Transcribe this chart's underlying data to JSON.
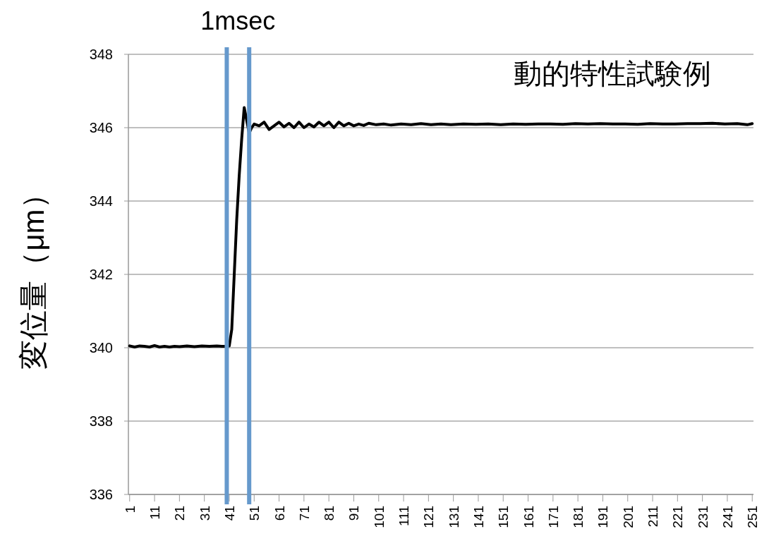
{
  "chart_data": {
    "type": "line",
    "title": "動的特性試験例",
    "ylabel": "変位量（μm）",
    "x": [
      1,
      3,
      5,
      7,
      9,
      11,
      13,
      15,
      17,
      19,
      21,
      24,
      27,
      30,
      33,
      36,
      38,
      40,
      41,
      42,
      43,
      44,
      45,
      46,
      47,
      48,
      49,
      50,
      51,
      53,
      55,
      57,
      59,
      61,
      63,
      65,
      67,
      69,
      71,
      73,
      75,
      77,
      79,
      81,
      83,
      85,
      87,
      89,
      91,
      93,
      95,
      97,
      100,
      103,
      106,
      110,
      114,
      118,
      122,
      126,
      130,
      135,
      140,
      145,
      150,
      155,
      160,
      165,
      170,
      175,
      180,
      185,
      190,
      195,
      200,
      205,
      210,
      215,
      220,
      225,
      230,
      235,
      240,
      245,
      249,
      251
    ],
    "series": [
      {
        "color": "#000000",
        "values": [
          340.05,
          340.02,
          340.05,
          340.04,
          340.02,
          340.06,
          340.02,
          340.04,
          340.02,
          340.04,
          340.03,
          340.05,
          340.03,
          340.05,
          340.04,
          340.05,
          340.04,
          340.04,
          340.05,
          340.5,
          342.0,
          343.5,
          344.7,
          345.7,
          346.55,
          346.2,
          345.85,
          346.0,
          346.1,
          346.05,
          346.15,
          345.95,
          346.05,
          346.15,
          346.02,
          346.12,
          346.0,
          346.15,
          346.0,
          346.1,
          346.02,
          346.15,
          346.05,
          346.15,
          346.0,
          346.15,
          346.05,
          346.12,
          346.05,
          346.1,
          346.06,
          346.12,
          346.08,
          346.1,
          346.07,
          346.1,
          346.08,
          346.11,
          346.08,
          346.1,
          346.08,
          346.1,
          346.09,
          346.1,
          346.08,
          346.1,
          346.09,
          346.1,
          346.1,
          346.09,
          346.11,
          346.1,
          346.11,
          346.1,
          346.1,
          346.09,
          346.11,
          346.1,
          346.1,
          346.11,
          346.11,
          346.12,
          346.1,
          346.11,
          346.08,
          346.11
        ]
      }
    ],
    "xlim": [
      0.5,
      251.5
    ],
    "xticks": [
      1,
      11,
      21,
      31,
      41,
      51,
      61,
      71,
      81,
      91,
      101,
      111,
      121,
      131,
      141,
      151,
      161,
      171,
      181,
      191,
      201,
      211,
      221,
      231,
      241,
      251
    ],
    "ylim": [
      336,
      348
    ],
    "yticks": [
      336,
      338,
      340,
      342,
      344,
      346,
      348
    ],
    "grid": "y",
    "ref_lines": [
      {
        "axis": "x",
        "value": 40,
        "label": "1msec",
        "color": "#6699cc"
      },
      {
        "axis": "x",
        "value": 49,
        "label": null,
        "color": "#6699cc"
      }
    ]
  }
}
